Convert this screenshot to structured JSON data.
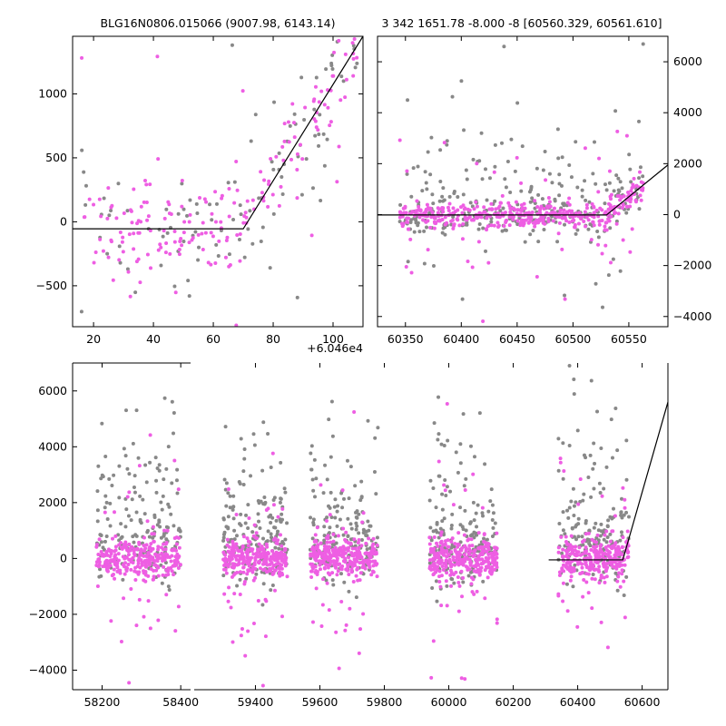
{
  "figure": {
    "title_left": "BLG16N0806.015066 (9007.98, 6143.14)",
    "title_right": "3 342 1651.78 -8.000 -8 [60560.329, 60561.610]",
    "offset_label": "+6.046e4",
    "colors": {
      "model": "#000000",
      "series_a": "#888888",
      "series_b": "#ee5ee3"
    }
  },
  "chart_data": [
    {
      "type": "scatter",
      "panel": "zoom-left",
      "x_axis_offset": 60460,
      "xlim": [
        13,
        110
      ],
      "ylim": [
        -820,
        1450
      ],
      "xticks": [
        20,
        40,
        60,
        80,
        100
      ],
      "xtick_labels": [
        "20",
        "40",
        "60",
        "80",
        "100"
      ],
      "yticks": [
        -500,
        0,
        500,
        1000
      ],
      "ytick_labels": [
        "−500",
        "0",
        "500",
        "1000"
      ],
      "model_line": [
        [
          13,
          -55
        ],
        [
          70,
          -55
        ],
        [
          110,
          1450
        ]
      ],
      "series": [
        {
          "color": "#888888",
          "n_points": 120,
          "baseline": -60,
          "scatter": 450,
          "start_rise": 70,
          "end_rise": 110,
          "end_value": 1450
        },
        {
          "color": "#ee5ee3",
          "n_points": 200,
          "baseline": -60,
          "scatter": 400,
          "start_rise": 70,
          "end_rise": 110,
          "end_value": 1450
        }
      ]
    },
    {
      "type": "scatter",
      "panel": "season-right",
      "xlim": [
        60325,
        60585
      ],
      "ylim": [
        -4400,
        7000
      ],
      "xticks": [
        60350,
        60400,
        60450,
        60500,
        60550
      ],
      "xtick_labels": [
        "60350",
        "60400",
        "60450",
        "60500",
        "60550"
      ],
      "yticks": [
        -4000,
        -2000,
        0,
        2000,
        4000,
        6000
      ],
      "ytick_labels": [
        "−4000",
        "−2000",
        "0",
        "2000",
        "4000",
        "6000"
      ],
      "y_axis_side": "right",
      "model_line": [
        [
          60325,
          -15
        ],
        [
          60530,
          -15
        ],
        [
          60585,
          1950
        ]
      ],
      "series": [
        {
          "color": "#888888",
          "n_points": 300,
          "baseline": 0,
          "scatter": 1500,
          "start_rise": 60530,
          "end_rise": 60562,
          "end_value": 1500
        },
        {
          "color": "#ee5ee3",
          "n_points": 450,
          "baseline": 0,
          "scatter": 900,
          "start_rise": 60530,
          "end_rise": 60562,
          "end_value": 1500
        }
      ]
    },
    {
      "type": "scatter",
      "panel": "full-lightcurve",
      "ylim": [
        -4700,
        7000
      ],
      "yticks": [
        -4000,
        -2000,
        0,
        2000,
        4000,
        6000
      ],
      "ytick_labels": [
        "−4000",
        "−2000",
        "0",
        "2000",
        "4000",
        "6000"
      ],
      "segments": [
        {
          "xlim": [
            58125,
            58425
          ],
          "xticks": [
            58200,
            58400
          ],
          "xtick_labels": [
            "58200",
            "58400"
          ],
          "season": [
            58185,
            58400
          ]
        },
        {
          "xlim": [
            59210,
            60680
          ],
          "xticks": [
            59400,
            59600,
            59800,
            60000,
            60200,
            60400,
            60600
          ],
          "xtick_labels": [
            "59400",
            "59600",
            "59800",
            "60000",
            "60200",
            "60400",
            "60600"
          ],
          "seasons": [
            [
              59300,
              59500
            ],
            [
              59570,
              59780
            ],
            [
              59940,
              60150
            ],
            [
              60340,
              60560
            ]
          ]
        }
      ],
      "model_line": [
        [
          60310,
          -50
        ],
        [
          60540,
          -50
        ],
        [
          60680,
          5600
        ]
      ],
      "series": [
        {
          "color": "#888888",
          "n_points": 900,
          "baseline": 200,
          "scatter": 2000
        },
        {
          "color": "#ee5ee3",
          "n_points": 1500,
          "baseline": 0,
          "scatter": 700
        }
      ]
    }
  ]
}
